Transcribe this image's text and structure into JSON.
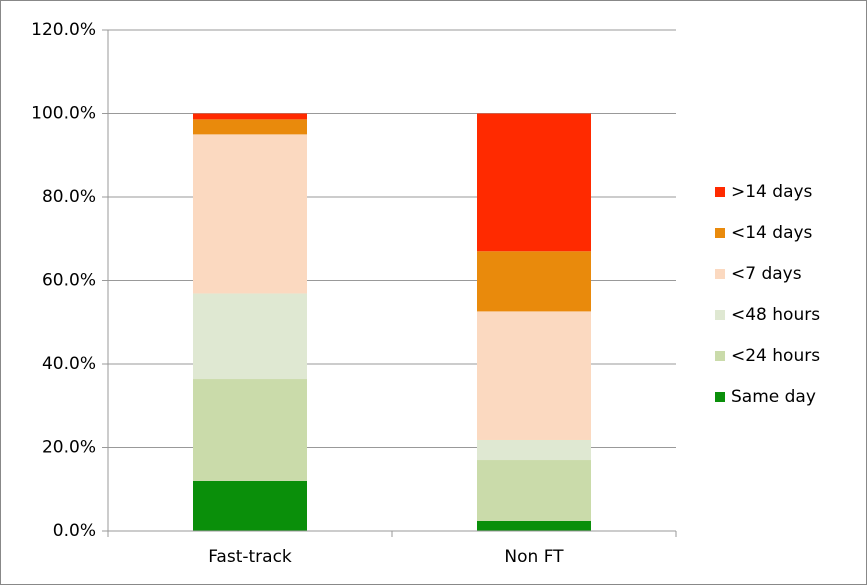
{
  "chart_data": {
    "type": "stacked-bar",
    "categories": [
      "Fast-track",
      "Non FT"
    ],
    "series": [
      {
        "name": "Same day",
        "color": "#0a8f0a",
        "values": [
          12.0,
          2.4
        ]
      },
      {
        "name": "<24 hours",
        "color": "#cadbaa",
        "values": [
          24.4,
          14.6
        ]
      },
      {
        "name": "<48 hours",
        "color": "#dfe8d2",
        "values": [
          20.5,
          4.8
        ]
      },
      {
        "name": "<7 days",
        "color": "#fbd9c0",
        "values": [
          38.1,
          30.8
        ]
      },
      {
        "name": "<14 days",
        "color": "#e98a0c",
        "values": [
          3.6,
          14.4
        ]
      },
      {
        "name": ">14 days",
        "color": "#ff2a00",
        "values": [
          1.4,
          33.0
        ]
      }
    ],
    "ylim": [
      0,
      120
    ],
    "yticks": [
      {
        "value": 0,
        "label": "0.0%"
      },
      {
        "value": 20,
        "label": "20.0%"
      },
      {
        "value": 40,
        "label": "40.0%"
      },
      {
        "value": 60,
        "label": "60.0%"
      },
      {
        "value": 80,
        "label": "80.0%"
      },
      {
        "value": 100,
        "label": "100.0%"
      },
      {
        "value": 120,
        "label": "120.0%"
      }
    ],
    "legend": "right"
  }
}
